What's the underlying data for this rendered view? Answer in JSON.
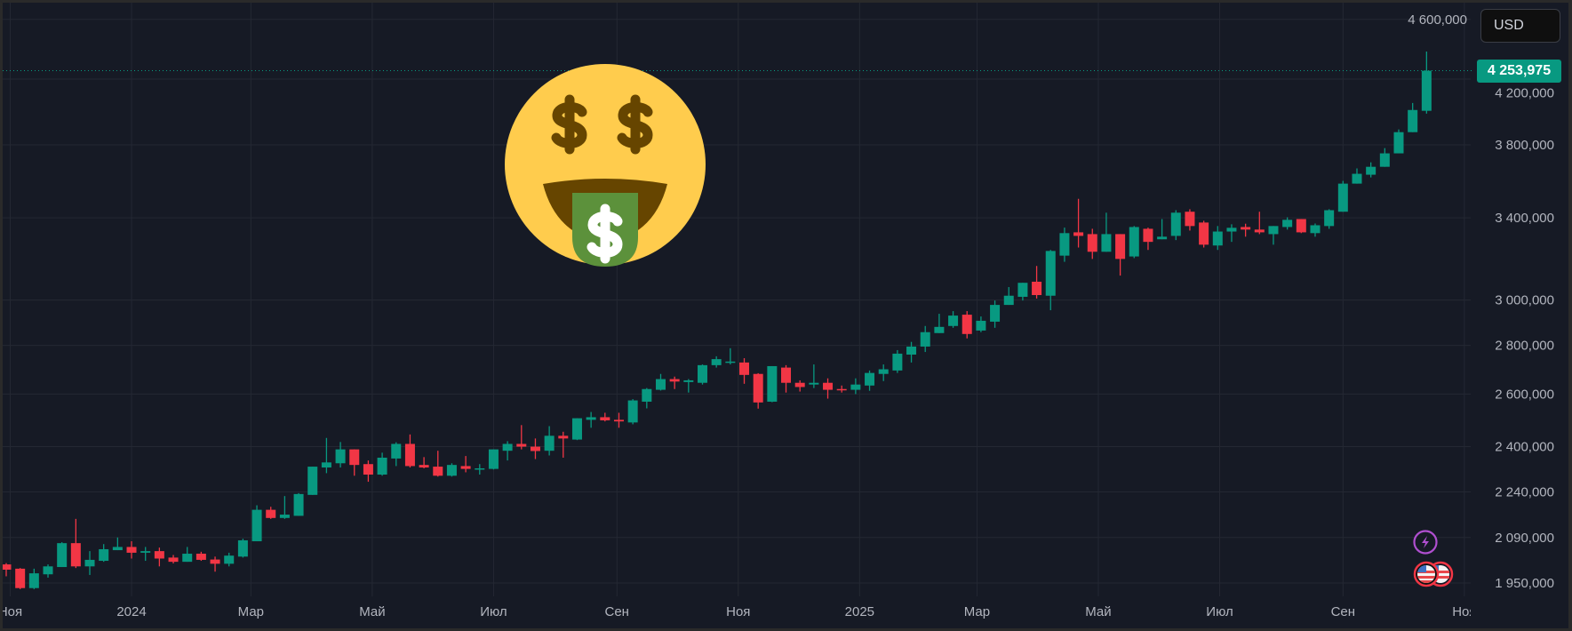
{
  "currency_button": {
    "label": "USD"
  },
  "last_price": {
    "value": 4253975,
    "label": "4 253,975"
  },
  "colors": {
    "up": "#089981",
    "down": "#f23645",
    "background": "#161a25",
    "grid": "#242833",
    "price_line": "#089981",
    "event_lightning": "#b04fd0",
    "event_flag_ring": "#f23645"
  },
  "overlay": {
    "emoji": "money-mouth-face"
  },
  "events": [
    {
      "icon": "lightning-icon"
    },
    {
      "icon": "us-flag-icon"
    },
    {
      "icon": "us-flag-icon"
    }
  ],
  "chart_data": {
    "type": "candlestick",
    "interval": "weekly",
    "y_scale": "log",
    "grid": true,
    "ylim": [
      1900000,
      4650000
    ],
    "y_ticks": [
      {
        "value": 1950000,
        "label": "1 950,000"
      },
      {
        "value": 2090000,
        "label": "2 090,000"
      },
      {
        "value": 2240000,
        "label": "2 240,000"
      },
      {
        "value": 2400000,
        "label": "2 400,000"
      },
      {
        "value": 2600000,
        "label": "2 600,000"
      },
      {
        "value": 2800000,
        "label": "2 800,000"
      },
      {
        "value": 3000000,
        "label": "3 000,000"
      },
      {
        "value": 3400000,
        "label": "3 400,000"
      },
      {
        "value": 3800000,
        "label": "3 800,000"
      },
      {
        "value": 4200000,
        "label": "4 200,000"
      },
      {
        "value": 4600000,
        "label": "4 600,000"
      }
    ],
    "x_ticks": [
      {
        "date": "2023-11-01",
        "label": "Ноя"
      },
      {
        "date": "2024-01-01",
        "label": "2024"
      },
      {
        "date": "2024-03-01",
        "label": "Мар"
      },
      {
        "date": "2024-05-01",
        "label": "Май"
      },
      {
        "date": "2024-07-01",
        "label": "Июл"
      },
      {
        "date": "2024-09-01",
        "label": "Сен"
      },
      {
        "date": "2024-11-01",
        "label": "Ноя"
      },
      {
        "date": "2025-01-01",
        "label": "2025"
      },
      {
        "date": "2025-03-01",
        "label": "Мар"
      },
      {
        "date": "2025-05-01",
        "label": "Май"
      },
      {
        "date": "2025-07-01",
        "label": "Июл"
      },
      {
        "date": "2025-09-01",
        "label": "Сен"
      },
      {
        "date": "2025-11-01",
        "label": "Ноя"
      }
    ],
    "dates": [
      "2023-10-30",
      "2023-11-06",
      "2023-11-13",
      "2023-11-20",
      "2023-11-27",
      "2023-12-04",
      "2023-12-11",
      "2023-12-18",
      "2023-12-25",
      "2024-01-01",
      "2024-01-08",
      "2024-01-15",
      "2024-01-22",
      "2024-01-29",
      "2024-02-05",
      "2024-02-12",
      "2024-02-19",
      "2024-02-26",
      "2024-03-04",
      "2024-03-11",
      "2024-03-18",
      "2024-03-25",
      "2024-04-01",
      "2024-04-08",
      "2024-04-15",
      "2024-04-22",
      "2024-04-29",
      "2024-05-06",
      "2024-05-13",
      "2024-05-20",
      "2024-05-27",
      "2024-06-03",
      "2024-06-10",
      "2024-06-17",
      "2024-06-24",
      "2024-07-01",
      "2024-07-08",
      "2024-07-15",
      "2024-07-22",
      "2024-07-29",
      "2024-08-05",
      "2024-08-12",
      "2024-08-19",
      "2024-08-26",
      "2024-09-02",
      "2024-09-09",
      "2024-09-16",
      "2024-09-23",
      "2024-09-30",
      "2024-10-07",
      "2024-10-14",
      "2024-10-21",
      "2024-10-28",
      "2024-11-04",
      "2024-11-11",
      "2024-11-18",
      "2024-11-25",
      "2024-12-02",
      "2024-12-09",
      "2024-12-16",
      "2024-12-23",
      "2024-12-30",
      "2025-01-06",
      "2025-01-13",
      "2025-01-20",
      "2025-01-27",
      "2025-02-03",
      "2025-02-10",
      "2025-02-17",
      "2025-02-24",
      "2025-03-03",
      "2025-03-10",
      "2025-03-17",
      "2025-03-24",
      "2025-03-31",
      "2025-04-07",
      "2025-04-14",
      "2025-04-21",
      "2025-04-28",
      "2025-05-05",
      "2025-05-12",
      "2025-05-19",
      "2025-05-26",
      "2025-06-02",
      "2025-06-09",
      "2025-06-16",
      "2025-06-23",
      "2025-06-30",
      "2025-07-07",
      "2025-07-14",
      "2025-07-21",
      "2025-07-28",
      "2025-08-04",
      "2025-08-11",
      "2025-08-18",
      "2025-08-25",
      "2025-09-01",
      "2025-09-08",
      "2025-09-15",
      "2025-09-22",
      "2025-09-29",
      "2025-10-06",
      "2025-10-13"
    ],
    "ohlc_fields": [
      "open",
      "high",
      "low",
      "close"
    ],
    "ohlc": [
      [
        2006000,
        2010000,
        1970000,
        1990000
      ],
      [
        1993000,
        1995000,
        1932000,
        1935000
      ],
      [
        1935000,
        1993000,
        1932000,
        1979000
      ],
      [
        1976000,
        2006000,
        1966000,
        2000000
      ],
      [
        1998000,
        2075000,
        1998000,
        2072000
      ],
      [
        2072000,
        2150000,
        1995000,
        2000000
      ],
      [
        2000000,
        2047000,
        1974000,
        2020000
      ],
      [
        2017000,
        2069000,
        2014000,
        2053000
      ],
      [
        2050000,
        2090000,
        2050000,
        2060000
      ],
      [
        2060000,
        2078000,
        2024000,
        2042000
      ],
      [
        2042000,
        2060000,
        2017000,
        2047000
      ],
      [
        2047000,
        2058000,
        2000000,
        2024000
      ],
      [
        2027000,
        2035000,
        2009000,
        2014000
      ],
      [
        2014000,
        2060000,
        2014000,
        2039000
      ],
      [
        2039000,
        2045000,
        2017000,
        2020000
      ],
      [
        2021000,
        2030000,
        1984000,
        2008000
      ],
      [
        2008000,
        2042000,
        2000000,
        2033000
      ],
      [
        2030000,
        2086000,
        2027000,
        2081000
      ],
      [
        2078000,
        2195000,
        2078000,
        2180000
      ],
      [
        2180000,
        2190000,
        2150000,
        2153000
      ],
      [
        2153000,
        2226000,
        2150000,
        2164000
      ],
      [
        2160000,
        2236000,
        2160000,
        2233000
      ],
      [
        2230000,
        2328000,
        2230000,
        2328000
      ],
      [
        2325000,
        2432000,
        2305000,
        2343000
      ],
      [
        2340000,
        2417000,
        2325000,
        2390000
      ],
      [
        2390000,
        2390000,
        2296000,
        2334000
      ],
      [
        2337000,
        2350000,
        2275000,
        2300000
      ],
      [
        2300000,
        2378000,
        2296000,
        2360000
      ],
      [
        2357000,
        2416000,
        2330000,
        2410000
      ],
      [
        2410000,
        2445000,
        2325000,
        2330000
      ],
      [
        2334000,
        2362000,
        2322000,
        2325000
      ],
      [
        2328000,
        2385000,
        2293000,
        2296000
      ],
      [
        2296000,
        2340000,
        2293000,
        2334000
      ],
      [
        2330000,
        2366000,
        2308000,
        2320000
      ],
      [
        2320000,
        2337000,
        2300000,
        2322000
      ],
      [
        2320000,
        2390000,
        2318000,
        2390000
      ],
      [
        2385000,
        2420000,
        2350000,
        2410000
      ],
      [
        2410000,
        2480000,
        2390000,
        2400000
      ],
      [
        2400000,
        2430000,
        2355000,
        2384000
      ],
      [
        2385000,
        2476000,
        2368000,
        2440000
      ],
      [
        2440000,
        2455000,
        2360000,
        2430000
      ],
      [
        2426000,
        2506000,
        2424000,
        2506000
      ],
      [
        2500000,
        2530000,
        2470000,
        2510000
      ],
      [
        2510000,
        2527000,
        2494000,
        2498000
      ],
      [
        2500000,
        2527000,
        2470000,
        2494000
      ],
      [
        2490000,
        2580000,
        2483000,
        2575000
      ],
      [
        2570000,
        2624000,
        2544000,
        2620000
      ],
      [
        2617000,
        2681000,
        2614000,
        2660000
      ],
      [
        2660000,
        2670000,
        2620000,
        2650000
      ],
      [
        2648000,
        2660000,
        2606000,
        2655000
      ],
      [
        2645000,
        2720000,
        2638000,
        2717000
      ],
      [
        2717000,
        2754000,
        2707000,
        2742000
      ],
      [
        2728000,
        2788000,
        2720000,
        2732000
      ],
      [
        2728000,
        2746000,
        2641000,
        2677000
      ],
      [
        2681000,
        2684000,
        2543000,
        2567000
      ],
      [
        2570000,
        2713000,
        2568000,
        2713000
      ],
      [
        2707000,
        2717000,
        2606000,
        2645000
      ],
      [
        2645000,
        2655000,
        2610000,
        2628000
      ],
      [
        2638000,
        2720000,
        2624000,
        2645000
      ],
      [
        2645000,
        2663000,
        2582000,
        2617000
      ],
      [
        2620000,
        2634000,
        2606000,
        2617000
      ],
      [
        2617000,
        2663000,
        2600000,
        2638000
      ],
      [
        2634000,
        2695000,
        2613000,
        2685000
      ],
      [
        2681000,
        2720000,
        2652000,
        2700000
      ],
      [
        2695000,
        2780000,
        2685000,
        2765000
      ],
      [
        2761000,
        2815000,
        2728000,
        2795000
      ],
      [
        2795000,
        2884000,
        2772000,
        2857000
      ],
      [
        2853000,
        2938000,
        2853000,
        2880000
      ],
      [
        2884000,
        2950000,
        2876000,
        2930000
      ],
      [
        2934000,
        2950000,
        2830000,
        2849000
      ],
      [
        2864000,
        2926000,
        2857000,
        2907000
      ],
      [
        2903000,
        2998000,
        2876000,
        2978000
      ],
      [
        2978000,
        3060000,
        2978000,
        3020000
      ],
      [
        3015000,
        3080000,
        2998000,
        3080000
      ],
      [
        3085000,
        3160000,
        3007000,
        3023000
      ],
      [
        3020000,
        3238000,
        2954000,
        3233000
      ],
      [
        3210000,
        3350000,
        3180000,
        3322000
      ],
      [
        3326000,
        3500000,
        3250000,
        3308000
      ],
      [
        3317000,
        3344000,
        3194000,
        3229000
      ],
      [
        3229000,
        3427000,
        3229000,
        3317000
      ],
      [
        3317000,
        3317000,
        3114000,
        3194000
      ],
      [
        3206000,
        3358000,
        3198000,
        3353000
      ],
      [
        3344000,
        3350000,
        3238000,
        3278000
      ],
      [
        3291000,
        3394000,
        3291000,
        3304000
      ],
      [
        3308000,
        3440000,
        3287000,
        3427000
      ],
      [
        3432000,
        3445000,
        3335000,
        3358000
      ],
      [
        3376000,
        3385000,
        3250000,
        3264000
      ],
      [
        3260000,
        3358000,
        3238000,
        3330000
      ],
      [
        3330000,
        3367000,
        3278000,
        3349000
      ],
      [
        3353000,
        3370000,
        3304000,
        3340000
      ],
      [
        3340000,
        3432000,
        3317000,
        3326000
      ],
      [
        3317000,
        3358000,
        3264000,
        3358000
      ],
      [
        3353000,
        3403000,
        3340000,
        3390000
      ],
      [
        3394000,
        3394000,
        3322000,
        3326000
      ],
      [
        3322000,
        3371000,
        3304000,
        3362000
      ],
      [
        3358000,
        3445000,
        3344000,
        3440000
      ],
      [
        3432000,
        3597000,
        3432000,
        3582000
      ],
      [
        3582000,
        3666000,
        3582000,
        3636000
      ],
      [
        3631000,
        3700000,
        3616000,
        3675000
      ],
      [
        3675000,
        3781000,
        3675000,
        3751000
      ],
      [
        3751000,
        3890000,
        3751000,
        3874000
      ],
      [
        3874000,
        4050000,
        3874000,
        4007000
      ],
      [
        4002000,
        4380000,
        3985000,
        4253975
      ]
    ]
  }
}
